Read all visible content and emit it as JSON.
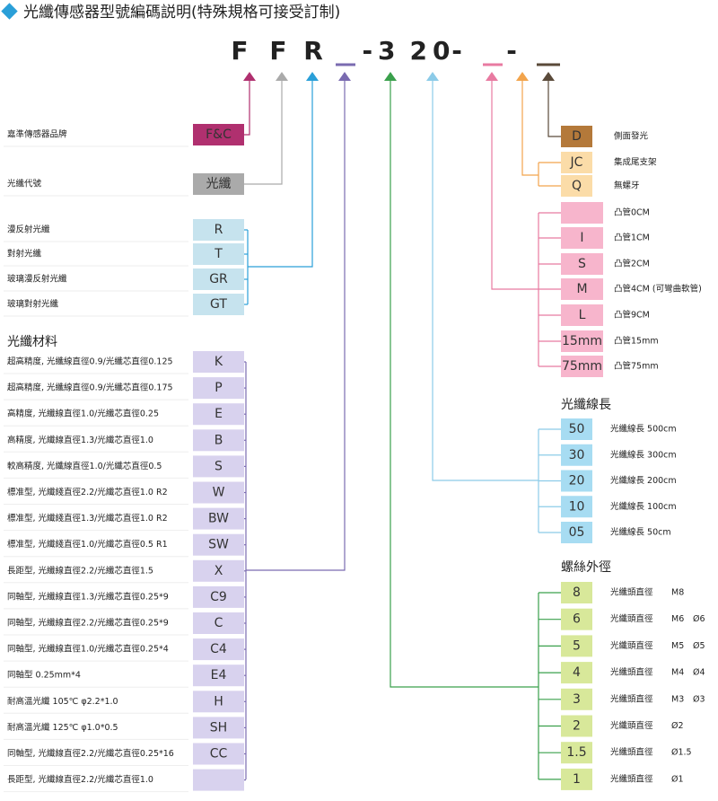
{
  "title": "光纖傳感器型號編碼説明(特殊規格可接受訂制)",
  "code": [
    "F",
    "F",
    "R",
    "-3",
    "20",
    "-",
    "-"
  ],
  "brand": {
    "label": "嘉準傳感器品牌",
    "code": "F&C"
  },
  "model": {
    "label": "光纖代號",
    "code": "光纖"
  },
  "type": [
    {
      "code": "R",
      "desc": "漫反射光纖"
    },
    {
      "code": "T",
      "desc": "對射光纖"
    },
    {
      "code": "GR",
      "desc": "玻璃漫反射光纖"
    },
    {
      "code": "GT",
      "desc": "玻璃對射光纖"
    }
  ],
  "material": {
    "heading": "光纖材料",
    "rows": [
      {
        "code": "K",
        "desc": "超高精度, 光纖線直徑0.9/光纖芯直徑0.125"
      },
      {
        "code": "P",
        "desc": "超高精度, 光纖線直徑0.9/光纖芯直徑0.175"
      },
      {
        "code": "E",
        "desc": "高精度, 光纖線直徑1.0/光纖芯直徑0.25"
      },
      {
        "code": "B",
        "desc": "高精度, 光纖線直徑1.3/光纖芯直徑1.0"
      },
      {
        "code": "S",
        "desc": "較高精度, 光纖線直徑1.0/光纖芯直徑0.5"
      },
      {
        "code": "W",
        "desc": "標准型, 光纖綫直徑2.2/光纖芯直徑1.0  R2"
      },
      {
        "code": "BW",
        "desc": "標准型, 光纖綫直徑1.3/光纖芯直徑1.0  R2"
      },
      {
        "code": "SW",
        "desc": "標准型, 光纖綫直徑1.0/光纖芯直徑0.5  R1"
      },
      {
        "code": "X",
        "desc": "長距型, 光纖線直徑2.2/光纖芯直徑1.5"
      },
      {
        "code": "C9",
        "desc": "同軸型, 光纖線直徑1.3/光纖芯直徑0.25*9"
      },
      {
        "code": "C",
        "desc": "同軸型, 光纖線直徑2.2/光纖芯直徑0.25*9"
      },
      {
        "code": "C4",
        "desc": "同軸型, 光纖線直徑1.0/光纖芯直徑0.25*4"
      },
      {
        "code": "E4",
        "desc": "同軸型  0.25mm*4"
      },
      {
        "code": "H",
        "desc": "耐高溫光纖  105℃  φ2.2*1.0"
      },
      {
        "code": "SH",
        "desc": "耐高溫光纖  125℃  φ1.0*0.5"
      },
      {
        "code": "CC",
        "desc": "同軸型, 光纖線直徑2.2/光纖芯直徑0.25*16"
      },
      {
        "desc": "長距型, 光纖線直徑2.2/光纖芯直徑1.0"
      }
    ]
  },
  "side": {
    "code": "D",
    "desc": "側面發光"
  },
  "bracket": [
    {
      "code": "JC",
      "desc": "集成尾支架"
    },
    {
      "code": "Q",
      "desc": "無螺牙"
    }
  ],
  "tube": [
    {
      "desc": "凸管0CM"
    },
    {
      "code": "I",
      "desc": "凸管1CM"
    },
    {
      "code": "S",
      "desc": "凸管2CM"
    },
    {
      "code": "M",
      "desc": "凸管4CM (可彎曲軟管)"
    },
    {
      "code": "L",
      "desc": "凸管9CM"
    },
    {
      "code": "15mm",
      "desc": "凸管15mm"
    },
    {
      "code": "75mm",
      "desc": "凸管75mm"
    }
  ],
  "length": {
    "heading": "光纖線長",
    "rows": [
      {
        "code": "50",
        "desc": "光纖線長 500cm"
      },
      {
        "code": "30",
        "desc": "光纖線長 300cm"
      },
      {
        "code": "20",
        "desc": "光纖線長 200cm"
      },
      {
        "code": "10",
        "desc": "光纖線長 100cm"
      },
      {
        "code": "05",
        "desc": "光纖線長 50cm"
      }
    ]
  },
  "thread": {
    "heading": "螺絲外徑",
    "rows": [
      {
        "code": "8",
        "desc": "光纖頭直徑",
        "m": "M8"
      },
      {
        "code": "6",
        "desc": "光纖頭直徑",
        "m": "M6",
        "d": "Ø6"
      },
      {
        "code": "5",
        "desc": "光纖頭直徑",
        "m": "M5",
        "d": "Ø5"
      },
      {
        "code": "4",
        "desc": "光纖頭直徑",
        "m": "M4",
        "d": "Ø4"
      },
      {
        "code": "3",
        "desc": "光纖頭直徑",
        "m": "M3",
        "d": "Ø3"
      },
      {
        "code": "2",
        "desc": "光纖頭直徑",
        "d": "Ø2"
      },
      {
        "code": "1.5",
        "desc": "光纖頭直徑",
        "d": "Ø1.5"
      },
      {
        "code": "1",
        "desc": "光纖頭直徑",
        "d": "Ø1"
      }
    ]
  }
}
